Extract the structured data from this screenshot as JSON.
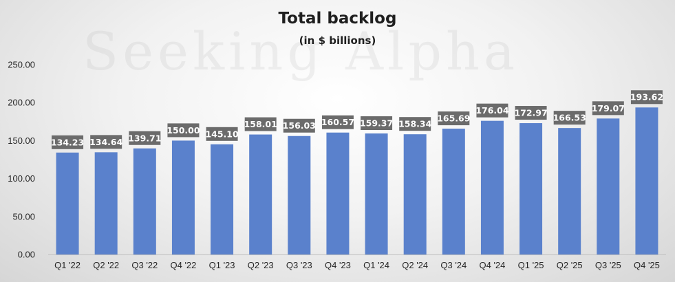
{
  "watermark": "Seeking Alpha",
  "colors": {
    "bar": "#5a81cc",
    "label_bg": "#6b6b6b",
    "axis": "#bfbfbf"
  },
  "chart_data": {
    "type": "bar",
    "title": "Total backlog",
    "subtitle": "(in $ billions)",
    "xlabel": "",
    "ylabel": "",
    "ylim": [
      0,
      250
    ],
    "yticks": [
      0,
      50,
      100,
      150,
      200,
      250
    ],
    "ytick_labels": [
      "0.00",
      "50.00",
      "100.00",
      "150.00",
      "200.00",
      "250.00"
    ],
    "grid": false,
    "legend": "none",
    "categories": [
      "Q1 '22",
      "Q2 '22",
      "Q3 '22",
      "Q4 '22",
      "Q1 '23",
      "Q2 '23",
      "Q3 '23",
      "Q4 '23",
      "Q1 '24",
      "Q2 '24",
      "Q3 '24",
      "Q4 '24",
      "Q1 '25",
      "Q2 '25",
      "Q3 '25",
      "Q4 '25"
    ],
    "values": [
      134.23,
      134.64,
      139.71,
      150.0,
      145.1,
      158.01,
      156.03,
      160.57,
      159.37,
      158.34,
      165.69,
      176.04,
      172.97,
      166.53,
      179.07,
      193.62
    ],
    "data_labels": [
      "134.23",
      "134.64",
      "139.71",
      "150.00",
      "145.10",
      "158.01",
      "156.03",
      "160.57",
      "159.37",
      "158.34",
      "165.69",
      "176.04",
      "172.97",
      "166.53",
      "179.07",
      "193.62"
    ]
  }
}
